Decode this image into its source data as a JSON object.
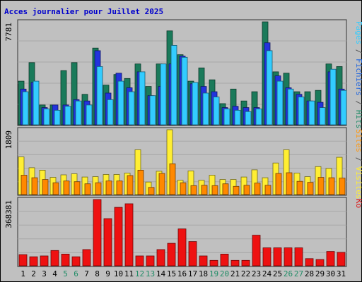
{
  "chart_data": {
    "type": "bar",
    "title": "Acces journalier pour Juillet 2025",
    "x": [
      "1",
      "2",
      "3",
      "4",
      "5",
      "6",
      "7",
      "8",
      "9",
      "10",
      "11",
      "12",
      "13",
      "14",
      "15",
      "16",
      "17",
      "18",
      "19",
      "20",
      "21",
      "22",
      "23",
      "24",
      "25",
      "26",
      "27",
      "28",
      "29",
      "30",
      "31"
    ],
    "weekend_days": [
      5,
      6,
      12,
      13,
      19,
      20,
      26,
      27
    ],
    "panels": [
      {
        "id": "top",
        "ymax_label": "7781",
        "ymax": 7781,
        "legend": [
          {
            "text": "Pages",
            "color": "#33ccff"
          },
          {
            "text": " / ",
            "color": "#555555"
          },
          {
            "text": "Fichiers",
            "color": "#2266dd"
          },
          {
            "text": " / ",
            "color": "#555555"
          },
          {
            "text": "Hits",
            "color": "#1f8c66"
          }
        ],
        "series": [
          {
            "name": "Hits",
            "color": "#1a7a5a",
            "values": [
              3300,
              4700,
              1500,
              1500,
              4100,
              4700,
              2300,
              5800,
              3000,
              3800,
              3500,
              4600,
              2900,
              4600,
              7100,
              5300,
              3300,
              4300,
              3400,
              1600,
              2700,
              1800,
              2500,
              7781,
              4000,
              3900,
              2500,
              2500,
              2600,
              4600,
              4400
            ]
          },
          {
            "name": "Fichiers",
            "color": "#2233dd",
            "values": [
              2700,
              3200,
              1300,
              1500,
              1500,
              1900,
              1800,
              5600,
              2400,
              3900,
              2800,
              4000,
              2200,
              2900,
              4600,
              5200,
              3100,
              2900,
              2500,
              1300,
              1400,
              1300,
              1300,
              6200,
              3700,
              2800,
              2300,
              1800,
              1700,
              4000,
              2700
            ]
          },
          {
            "name": "Pages",
            "color": "#33ccff",
            "values": [
              2500,
              3300,
              1200,
              1100,
              1400,
              1800,
              1500,
              4400,
              1900,
              3300,
              2500,
              4000,
              2200,
              4600,
              6000,
              5100,
              3200,
              2400,
              2100,
              1200,
              1100,
              1000,
              1200,
              5600,
              3300,
              2700,
              2100,
              1800,
              1300,
              4200,
              2600
            ]
          }
        ]
      },
      {
        "id": "middle",
        "ymax_label": "1809",
        "ymax": 1809,
        "legend": [
          {
            "text": "Sites",
            "color": "#ff9911"
          },
          {
            "text": " / ",
            "color": "#555555"
          },
          {
            "text": "Visites",
            "color": "#ffee33"
          }
        ],
        "series": [
          {
            "name": "Visites",
            "color": "#ffee33",
            "values": [
              1050,
              750,
              680,
              480,
              550,
              580,
              490,
              500,
              560,
              560,
              600,
              1250,
              350,
              650,
              1809,
              400,
              660,
              400,
              540,
              420,
              420,
              490,
              690,
              470,
              880,
              1250,
              600,
              500,
              780,
              730,
              1040
            ]
          },
          {
            "name": "Sites",
            "color": "#ff8800",
            "values": [
              540,
              470,
              420,
              330,
              380,
              360,
              300,
              330,
              380,
              380,
              530,
              680,
              200,
              590,
              860,
              330,
              250,
              260,
              250,
              300,
              230,
              260,
              320,
              260,
              590,
              610,
              370,
              340,
              480,
              470,
              460
            ]
          }
        ]
      },
      {
        "id": "bottom",
        "ymax_label": "368381",
        "ymax": 368381,
        "legend": [
          {
            "text": "Ko",
            "color": "#dd1111"
          }
        ],
        "series": [
          {
            "name": "Ko",
            "color": "#ee1111",
            "values": [
              62000,
              50000,
              55000,
              85000,
              65000,
              50000,
              90000,
              368381,
              262000,
              325000,
              345000,
              55000,
              55000,
              90000,
              125000,
              205000,
              135000,
              55000,
              30000,
              65000,
              30000,
              30000,
              170000,
              100000,
              100000,
              100000,
              100000,
              40000,
              35000,
              80000,
              75000
            ]
          }
        ]
      }
    ]
  }
}
